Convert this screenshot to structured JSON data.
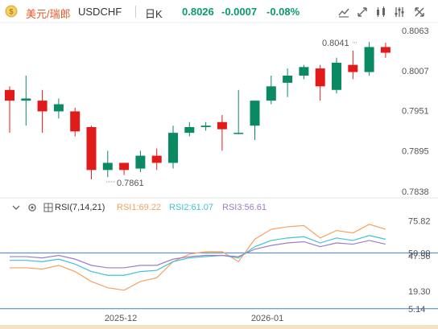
{
  "header": {
    "pair_cn": "美元/瑞郎",
    "pair_en": "USDCHF",
    "timeframe": "日K",
    "last_price": "0.8026",
    "change": "-0.0007",
    "change_pct": "-0.08%"
  },
  "toolbar": {
    "icons": [
      "chart-style-icon",
      "fit-icon",
      "indicator-icon",
      "settings-icon",
      "fullscreen-icon"
    ]
  },
  "price_axis": {
    "ticks": [
      "0.8063",
      "0.8007",
      "0.7951",
      "0.7895",
      "0.7838"
    ],
    "high_annotation": "0.8041",
    "low_annotation": "0.7861",
    "last_label": "0.8063"
  },
  "rsi": {
    "title": "RSI(7,14,21)",
    "rsi1_label": "RSI1:69.22",
    "rsi2_label": "RSI2:61.07",
    "rsi3_label": "RSI3:56.61",
    "axis_ticks": [
      "75.82",
      "50.00",
      "47.56",
      "19.30",
      "5.14"
    ],
    "colors": {
      "rsi1": "#f5a25d",
      "rsi2": "#3cc3d8",
      "rsi3": "#a07cc5"
    }
  },
  "time_axis": {
    "labels": [
      "2025-12",
      "2026-01"
    ]
  },
  "colors": {
    "up": "#0a8a62",
    "down": "#e11a1a",
    "accent": "#e05a2b"
  },
  "chart_data": {
    "type": "candlestick",
    "ohlc": [
      {
        "o": 0.798,
        "h": 0.7985,
        "l": 0.792,
        "c": 0.7965
      },
      {
        "o": 0.7965,
        "h": 0.8,
        "l": 0.793,
        "c": 0.7968
      },
      {
        "o": 0.7965,
        "h": 0.798,
        "l": 0.792,
        "c": 0.795
      },
      {
        "o": 0.795,
        "h": 0.7968,
        "l": 0.794,
        "c": 0.796
      },
      {
        "o": 0.795,
        "h": 0.7955,
        "l": 0.7915,
        "c": 0.7922
      },
      {
        "o": 0.7928,
        "h": 0.793,
        "l": 0.7855,
        "c": 0.7868
      },
      {
        "o": 0.7868,
        "h": 0.7895,
        "l": 0.7858,
        "c": 0.7878
      },
      {
        "o": 0.7878,
        "h": 0.7878,
        "l": 0.7861,
        "c": 0.7868
      },
      {
        "o": 0.787,
        "h": 0.7895,
        "l": 0.7865,
        "c": 0.7888
      },
      {
        "o": 0.7888,
        "h": 0.7898,
        "l": 0.7868,
        "c": 0.7878
      },
      {
        "o": 0.7878,
        "h": 0.793,
        "l": 0.787,
        "c": 0.792
      },
      {
        "o": 0.792,
        "h": 0.7935,
        "l": 0.7915,
        "c": 0.7928
      },
      {
        "o": 0.7928,
        "h": 0.7935,
        "l": 0.7923,
        "c": 0.793
      },
      {
        "o": 0.7935,
        "h": 0.7945,
        "l": 0.7895,
        "c": 0.7925
      },
      {
        "o": 0.792,
        "h": 0.798,
        "l": 0.7918,
        "c": 0.792
      },
      {
        "o": 0.793,
        "h": 0.7965,
        "l": 0.791,
        "c": 0.7965
      },
      {
        "o": 0.7965,
        "h": 0.8,
        "l": 0.796,
        "c": 0.7985
      },
      {
        "o": 0.799,
        "h": 0.801,
        "l": 0.797,
        "c": 0.8
      },
      {
        "o": 0.8,
        "h": 0.8015,
        "l": 0.7995,
        "c": 0.8012
      },
      {
        "o": 0.801,
        "h": 0.8015,
        "l": 0.7965,
        "c": 0.7985
      },
      {
        "o": 0.798,
        "h": 0.8025,
        "l": 0.7975,
        "c": 0.8018
      },
      {
        "o": 0.8015,
        "h": 0.8035,
        "l": 0.7995,
        "c": 0.8005
      },
      {
        "o": 0.8005,
        "h": 0.8047,
        "l": 0.8,
        "c": 0.804
      },
      {
        "o": 0.804,
        "h": 0.8046,
        "l": 0.8025,
        "c": 0.8032
      }
    ],
    "rsi1": [
      38,
      38,
      37,
      40,
      35,
      27,
      22,
      20,
      27,
      30,
      43,
      49,
      51,
      51,
      43,
      61,
      69,
      71,
      72,
      62,
      68,
      66,
      73,
      69
    ],
    "rsi2": [
      44,
      44,
      43,
      45,
      41,
      35,
      32,
      32,
      35,
      36,
      43,
      46,
      47,
      48,
      46,
      55,
      60,
      62,
      63,
      58,
      62,
      60,
      64,
      61
    ],
    "rsi3": [
      47,
      47,
      46,
      48,
      45,
      40,
      38,
      38,
      40,
      40,
      45,
      47,
      48,
      48,
      47,
      53,
      56,
      58,
      59,
      55,
      58,
      57,
      60,
      57
    ]
  }
}
